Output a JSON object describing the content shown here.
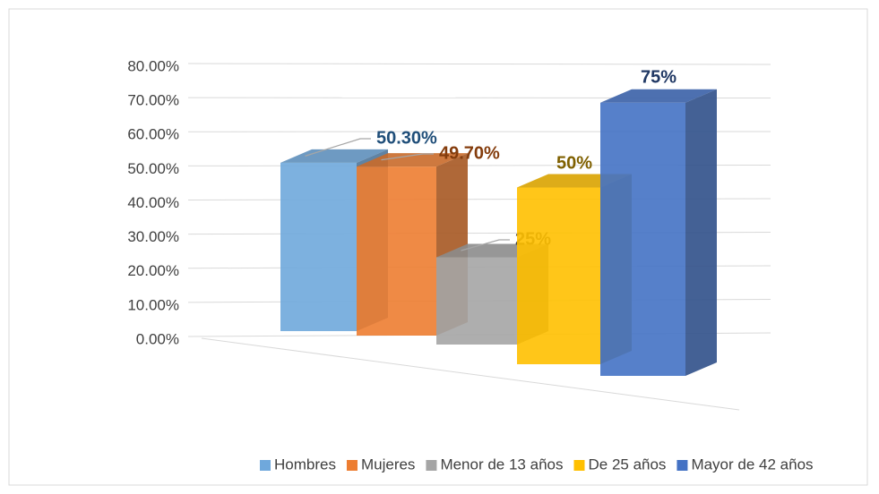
{
  "chart_data": {
    "type": "bar3d",
    "series": [
      {
        "name": "Hombres",
        "color": "#6FA8DC",
        "label_color": "#1F4E79",
        "values": [
          50.3
        ],
        "value_labels": [
          "50.30%"
        ]
      },
      {
        "name": "Mujeres",
        "color": "#ED7D31",
        "label_color": "#843C0C",
        "values": [
          49.7
        ],
        "value_labels": [
          "49.70%"
        ]
      },
      {
        "name": "Menor de 13 años",
        "color": "#A5A5A5",
        "label_color": "#404040",
        "values": [
          25
        ],
        "value_labels": [
          "25%"
        ]
      },
      {
        "name": "De 25 años",
        "color": "#FFC000",
        "label_color": "#7F6000",
        "values": [
          50
        ],
        "value_labels": [
          "50%"
        ]
      },
      {
        "name": "Mayor de 42 años",
        "color": "#4472C4",
        "label_color": "#203864",
        "values": [
          75
        ],
        "value_labels": [
          "75%"
        ]
      }
    ],
    "ylim": [
      0,
      80
    ],
    "yticks": [
      {
        "value": 0,
        "label": "0.00%"
      },
      {
        "value": 10,
        "label": "10.00%"
      },
      {
        "value": 20,
        "label": "20.00%"
      },
      {
        "value": 30,
        "label": "30.00%"
      },
      {
        "value": 40,
        "label": "40.00%"
      },
      {
        "value": 50,
        "label": "50.00%"
      },
      {
        "value": 60,
        "label": "60.00%"
      },
      {
        "value": 70,
        "label": "70.00%"
      },
      {
        "value": 80,
        "label": "80.00%"
      }
    ],
    "grid": true,
    "legend": "bottom"
  }
}
